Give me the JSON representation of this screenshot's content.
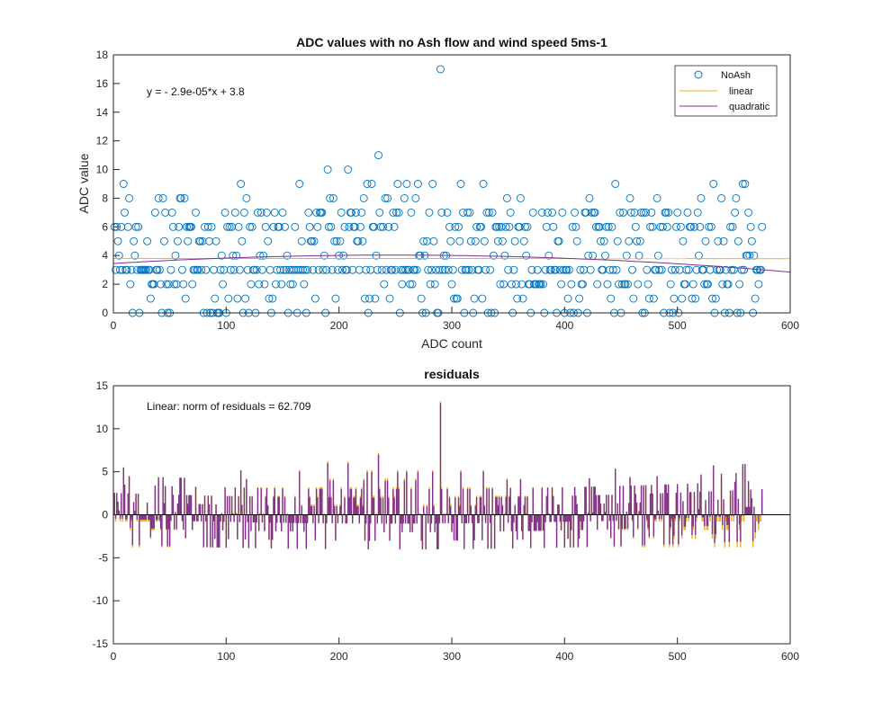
{
  "chart_data": [
    {
      "type": "scatter",
      "title": "ADC values with no Ash flow and wind speed 5ms-1",
      "xlabel": "ADC count",
      "ylabel": "ADC value",
      "xlim": [
        0,
        600
      ],
      "ylim": [
        0,
        18
      ],
      "xticks": [
        0,
        100,
        200,
        300,
        400,
        500,
        600
      ],
      "yticks": [
        0,
        2,
        4,
        6,
        8,
        10,
        12,
        14,
        16,
        18
      ],
      "x_range": [
        1,
        575
      ],
      "annotation": "y = - 2.9e-05*x + 3.8",
      "legend": {
        "placement": "top-right",
        "entries": [
          "NoAsh",
          "linear",
          "quadratic"
        ]
      },
      "highlight_points": [
        {
          "x": 290,
          "y": 17
        },
        {
          "x": 235,
          "y": 11
        },
        {
          "x": 190,
          "y": 10
        },
        {
          "x": 208,
          "y": 10
        },
        {
          "x": 9,
          "y": 9
        },
        {
          "x": 113,
          "y": 9
        },
        {
          "x": 165,
          "y": 9
        },
        {
          "x": 225,
          "y": 9
        },
        {
          "x": 229,
          "y": 9
        },
        {
          "x": 252,
          "y": 9
        },
        {
          "x": 260,
          "y": 9
        },
        {
          "x": 270,
          "y": 9
        },
        {
          "x": 283,
          "y": 9
        },
        {
          "x": 308,
          "y": 9
        },
        {
          "x": 328,
          "y": 9
        },
        {
          "x": 445,
          "y": 9
        },
        {
          "x": 532,
          "y": 9
        },
        {
          "x": 558,
          "y": 9
        },
        {
          "x": 560,
          "y": 9
        }
      ],
      "series": [
        {
          "name": "NoAsh",
          "kind": "markers",
          "color": "#0072bd"
        },
        {
          "name": "linear",
          "kind": "line",
          "color": "#edb120",
          "slope": -2.9e-05,
          "intercept": 3.8
        },
        {
          "name": "quadratic",
          "kind": "line",
          "color": "#7e2f8e",
          "coefficients": [
            -9.5e-06,
            0.0047,
            3.45
          ]
        }
      ]
    },
    {
      "type": "bar",
      "title": "residuals",
      "xlim": [
        0,
        600
      ],
      "ylim": [
        -15,
        15
      ],
      "xticks": [
        0,
        100,
        200,
        300,
        400,
        500,
        600
      ],
      "yticks": [
        -15,
        -10,
        -5,
        0,
        5,
        10,
        15
      ],
      "annotation": "Linear: norm of residuals = 62.709",
      "max_residual": {
        "x": 290,
        "y": 13.2
      },
      "series": [
        {
          "name": "linear",
          "color": "#edb120"
        },
        {
          "name": "quadratic",
          "color": "#7e2f8e"
        }
      ]
    }
  ]
}
